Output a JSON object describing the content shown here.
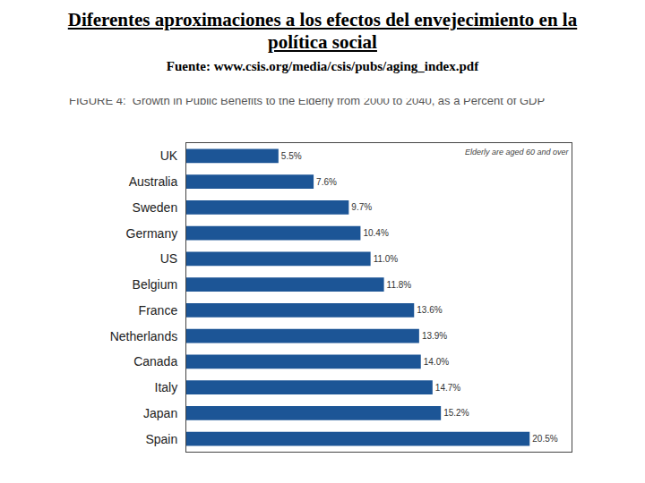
{
  "chart_data": {
    "type": "bar",
    "orientation": "horizontal",
    "title": "Diferentes aproximaciones a los efectos del envejecimiento en la política social",
    "subtitle": "Fuente: www.csis.org/media/csis/pubs/aging_index.pdf",
    "annotations": [
      "FIGURE 4:  Growth in Public Benefits to the Elderly from 2000 to 2040, as a Percent of GDP",
      "Elderly are aged 60 and over"
    ],
    "categories": [
      "UK",
      "Australia",
      "Sweden",
      "Germany",
      "US",
      "Belgium",
      "France",
      "Netherlands",
      "Canada",
      "Italy",
      "Japan",
      "Spain"
    ],
    "values": [
      5.5,
      7.6,
      9.7,
      10.4,
      11.0,
      11.8,
      13.6,
      13.9,
      14.0,
      14.7,
      15.2,
      20.5
    ],
    "value_labels": [
      "5.5%",
      "7.6%",
      "9.7%",
      "10.4%",
      "11.0%",
      "11.8%",
      "13.6%",
      "13.9%",
      "14.0%",
      "14.7%",
      "15.2%",
      "20.5%"
    ],
    "data_labels": true,
    "color": "#1c5596",
    "xlim": [
      0,
      23
    ],
    "xticks": [],
    "tick_labels": "y",
    "grid": false
  }
}
